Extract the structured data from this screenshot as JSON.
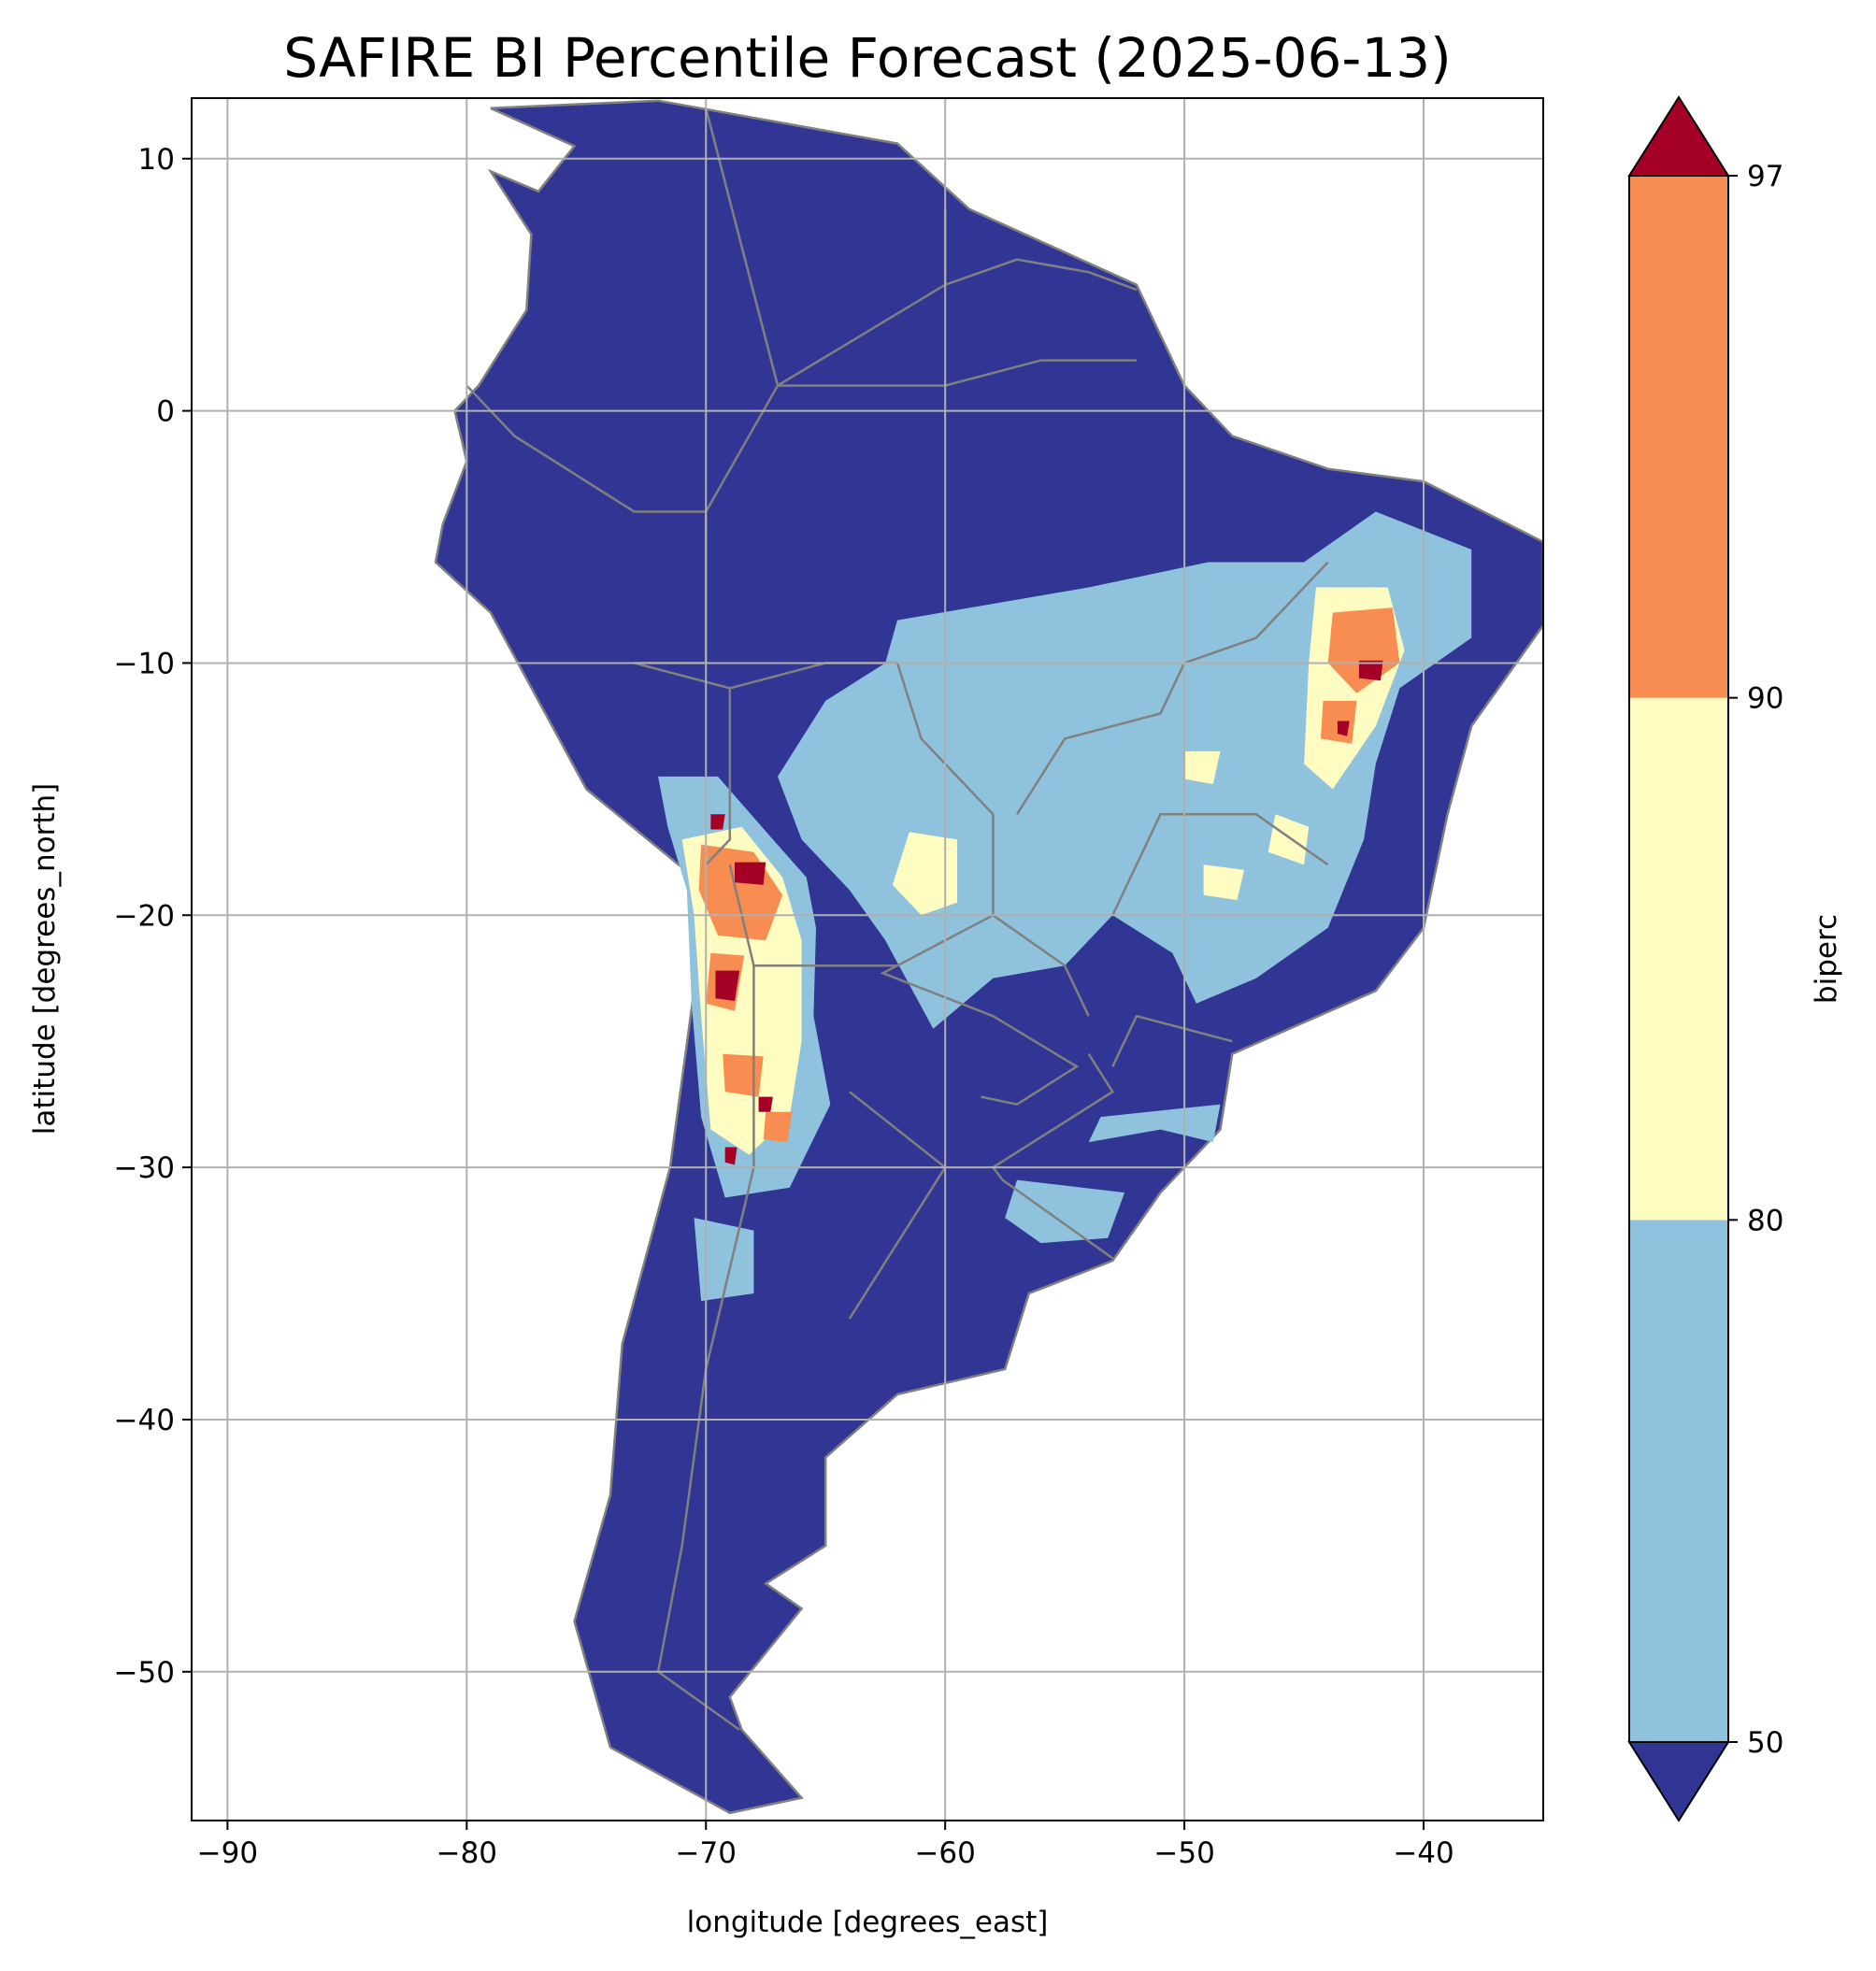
{
  "chart_data": {
    "type": "heatmap",
    "title": "SAFIRE BI Percentile Forecast (2025-06-13)",
    "xlabel": "longitude [degrees_east]",
    "ylabel": "latitude [degrees_north]",
    "xlim": [
      -91.5,
      -35
    ],
    "ylim": [
      -55.9,
      12.4
    ],
    "x_ticks": [
      -90,
      -80,
      -70,
      -60,
      -50,
      -40
    ],
    "x_tick_labels": [
      "−90",
      "−80",
      "−70",
      "−60",
      "−50",
      "−40"
    ],
    "y_ticks": [
      10,
      0,
      -10,
      -20,
      -30,
      -40,
      -50
    ],
    "y_tick_labels": [
      "10",
      "0",
      "−10",
      "−20",
      "−30",
      "−40",
      "−50"
    ],
    "grid": true,
    "colorbar": {
      "label": "biperc",
      "ticks": [
        50,
        80,
        90,
        97
      ],
      "tick_labels": [
        "50",
        "80",
        "90",
        "97"
      ],
      "bins": [
        {
          "range": "<50",
          "color": "#313695"
        },
        {
          "range": "50-80",
          "color": "#8fc3dd"
        },
        {
          "range": "80-90",
          "color": "#fffcc2"
        },
        {
          "range": "90-97",
          "color": "#f88d52"
        },
        {
          "range": ">97",
          "color": "#a50026"
        }
      ],
      "extend": "both"
    },
    "regions": {
      "continent": [
        [
          -79,
          12
        ],
        [
          -72,
          12.3
        ],
        [
          -62,
          10.6
        ],
        [
          -59,
          8
        ],
        [
          -52,
          5
        ],
        [
          -50,
          1
        ],
        [
          -48,
          -1
        ],
        [
          -44,
          -2.3
        ],
        [
          -40,
          -2.8
        ],
        [
          -35,
          -5.2
        ],
        [
          -35,
          -8.5
        ],
        [
          -38,
          -12.5
        ],
        [
          -39,
          -16
        ],
        [
          -40,
          -20.5
        ],
        [
          -42,
          -23
        ],
        [
          -48,
          -25.5
        ],
        [
          -48.5,
          -28.5
        ],
        [
          -51,
          -31
        ],
        [
          -53,
          -33.7
        ],
        [
          -56.5,
          -35
        ],
        [
          -57.5,
          -38
        ],
        [
          -62,
          -39
        ],
        [
          -65,
          -41.5
        ],
        [
          -65,
          -45
        ],
        [
          -67.5,
          -46.5
        ],
        [
          -66,
          -47.5
        ],
        [
          -69,
          -51
        ],
        [
          -68.5,
          -52.3
        ],
        [
          -66,
          -55
        ],
        [
          -69,
          -55.6
        ],
        [
          -74,
          -53
        ],
        [
          -75.5,
          -48
        ],
        [
          -74,
          -43
        ],
        [
          -73.5,
          -37
        ],
        [
          -71.5,
          -30
        ],
        [
          -70.5,
          -23
        ],
        [
          -70.5,
          -18.5
        ],
        [
          -75,
          -15
        ],
        [
          -79,
          -8
        ],
        [
          -81.3,
          -6
        ],
        [
          -81,
          -4.5
        ],
        [
          -80,
          -2
        ],
        [
          -80.5,
          0
        ],
        [
          -79.5,
          1
        ],
        [
          -78.5,
          2.5
        ],
        [
          -77.5,
          4
        ],
        [
          -77.3,
          7
        ],
        [
          -79,
          9.5
        ],
        [
          -77,
          8.7
        ],
        [
          -75.5,
          10.5
        ]
      ],
      "light_blue": [
        [
          [
            -62,
            -8.3
          ],
          [
            -54,
            -7
          ],
          [
            -49,
            -6
          ],
          [
            -45,
            -6
          ],
          [
            -42,
            -4
          ],
          [
            -38,
            -5.5
          ],
          [
            -38,
            -9
          ],
          [
            -41,
            -11
          ],
          [
            -42,
            -14
          ],
          [
            -42.5,
            -17
          ],
          [
            -44,
            -20.5
          ],
          [
            -47,
            -22.5
          ],
          [
            -49.5,
            -23.5
          ],
          [
            -50.5,
            -21.5
          ],
          [
            -53,
            -20
          ],
          [
            -55,
            -22
          ],
          [
            -58,
            -22.5
          ],
          [
            -60.5,
            -24.5
          ],
          [
            -62.5,
            -21
          ],
          [
            -64,
            -19
          ],
          [
            -66,
            -17
          ],
          [
            -67,
            -14.5
          ],
          [
            -65,
            -11.5
          ],
          [
            -62.5,
            -10
          ]
        ],
        [
          [
            -53.5,
            -28
          ],
          [
            -48.5,
            -27.5
          ],
          [
            -48.8,
            -29
          ],
          [
            -51,
            -28.5
          ],
          [
            -54,
            -29
          ]
        ],
        [
          [
            -57,
            -30.5
          ],
          [
            -52.5,
            -31
          ],
          [
            -53.2,
            -32.8
          ],
          [
            -56,
            -33
          ],
          [
            -57.5,
            -32
          ]
        ],
        [
          [
            -72,
            -14.5
          ],
          [
            -69.5,
            -14.5
          ],
          [
            -67.2,
            -17
          ],
          [
            -65.8,
            -18.5
          ],
          [
            -65.4,
            -20.5
          ],
          [
            -65.5,
            -24
          ],
          [
            -64.8,
            -27.5
          ],
          [
            -66.5,
            -30.8
          ],
          [
            -69.2,
            -31.2
          ],
          [
            -70.2,
            -28
          ],
          [
            -70.6,
            -23.5
          ],
          [
            -70.8,
            -19
          ],
          [
            -71.6,
            -16.5
          ]
        ],
        [
          [
            -70.5,
            -32
          ],
          [
            -68,
            -32.5
          ],
          [
            -68,
            -35
          ],
          [
            -70.2,
            -35.3
          ]
        ]
      ],
      "yellow": [
        [
          [
            -71,
            -17
          ],
          [
            -68.5,
            -16.5
          ],
          [
            -66.8,
            -18.5
          ],
          [
            -66,
            -21
          ],
          [
            -66,
            -25
          ],
          [
            -66.5,
            -28
          ],
          [
            -68.2,
            -29.5
          ],
          [
            -69.8,
            -28.5
          ],
          [
            -70.2,
            -24
          ],
          [
            -70.5,
            -20
          ]
        ],
        [
          [
            -61.5,
            -16.7
          ],
          [
            -59.5,
            -17
          ],
          [
            -59.5,
            -19.5
          ],
          [
            -61,
            -20
          ],
          [
            -62.2,
            -18.8
          ]
        ],
        [
          [
            -44.5,
            -7
          ],
          [
            -41.5,
            -7
          ],
          [
            -40.8,
            -9.5
          ],
          [
            -42,
            -12.5
          ],
          [
            -43.8,
            -15
          ],
          [
            -45,
            -14
          ],
          [
            -44.8,
            -10
          ]
        ],
        [
          [
            -46.2,
            -16
          ],
          [
            -44.8,
            -16.5
          ],
          [
            -45,
            -18
          ],
          [
            -46.5,
            -17.5
          ]
        ],
        [
          [
            -49.2,
            -18
          ],
          [
            -47.5,
            -18.2
          ],
          [
            -47.8,
            -19.4
          ],
          [
            -49.2,
            -19.2
          ]
        ],
        [
          [
            -50,
            -13.5
          ],
          [
            -48.5,
            -13.5
          ],
          [
            -48.8,
            -14.8
          ],
          [
            -50,
            -14.6
          ]
        ]
      ],
      "orange": [
        [
          [
            -70.2,
            -17.2
          ],
          [
            -68,
            -17.5
          ],
          [
            -66.8,
            -19.2
          ],
          [
            -67.5,
            -21
          ],
          [
            -69.5,
            -20.8
          ],
          [
            -70.3,
            -19
          ]
        ],
        [
          [
            -69.8,
            -21.5
          ],
          [
            -68.4,
            -21.6
          ],
          [
            -68.8,
            -23.8
          ],
          [
            -70,
            -23.5
          ]
        ],
        [
          [
            -69.3,
            -25.5
          ],
          [
            -67.6,
            -25.6
          ],
          [
            -67.8,
            -27.2
          ],
          [
            -69.2,
            -27
          ]
        ],
        [
          [
            -43.8,
            -8
          ],
          [
            -41.3,
            -7.8
          ],
          [
            -41,
            -10
          ],
          [
            -42.8,
            -11.2
          ],
          [
            -44,
            -10
          ]
        ],
        [
          [
            -44.2,
            -11.5
          ],
          [
            -42.8,
            -11.5
          ],
          [
            -43,
            -13.2
          ],
          [
            -44.3,
            -13
          ]
        ],
        [
          [
            -67.5,
            -27.8
          ],
          [
            -66.4,
            -27.8
          ],
          [
            -66.6,
            -29
          ],
          [
            -67.6,
            -28.9
          ]
        ]
      ],
      "dark_red": [
        [
          [
            -68.8,
            -17.9
          ],
          [
            -67.5,
            -17.9
          ],
          [
            -67.6,
            -18.8
          ],
          [
            -68.8,
            -18.7
          ]
        ],
        [
          [
            -69.6,
            -22.2
          ],
          [
            -68.6,
            -22.2
          ],
          [
            -68.8,
            -23.4
          ],
          [
            -69.6,
            -23.3
          ]
        ],
        [
          [
            -42.7,
            -9.9
          ],
          [
            -41.7,
            -9.9
          ],
          [
            -41.8,
            -10.7
          ],
          [
            -42.7,
            -10.6
          ]
        ],
        [
          [
            -69.8,
            -16
          ],
          [
            -69.2,
            -16
          ],
          [
            -69.3,
            -16.6
          ],
          [
            -69.8,
            -16.6
          ]
        ],
        [
          [
            -67.8,
            -27.2
          ],
          [
            -67.2,
            -27.2
          ],
          [
            -67.3,
            -27.8
          ],
          [
            -67.8,
            -27.8
          ]
        ],
        [
          [
            -69.2,
            -29.2
          ],
          [
            -68.7,
            -29.2
          ],
          [
            -68.8,
            -29.9
          ],
          [
            -69.2,
            -29.8
          ]
        ],
        [
          [
            -43.6,
            -12.3
          ],
          [
            -43.1,
            -12.3
          ],
          [
            -43.2,
            -12.9
          ],
          [
            -43.6,
            -12.8
          ]
        ]
      ],
      "borders": [
        [
          [
            -70,
            12
          ],
          [
            -67,
            1
          ],
          [
            -70,
            -4
          ],
          [
            -73,
            -4
          ],
          [
            -78,
            -1
          ],
          [
            -80,
            1
          ]
        ],
        [
          [
            -70,
            -4
          ],
          [
            -70,
            -10
          ],
          [
            -73,
            -10
          ],
          [
            -69,
            -11
          ],
          [
            -69,
            -17
          ],
          [
            -70,
            -18
          ]
        ],
        [
          [
            -69,
            -11
          ],
          [
            -65,
            -10
          ],
          [
            -62,
            -10
          ],
          [
            -61,
            -13
          ],
          [
            -58,
            -16
          ],
          [
            -58,
            -20
          ],
          [
            -62,
            -22
          ],
          [
            -68,
            -22
          ],
          [
            -69,
            -18
          ]
        ],
        [
          [
            -62,
            -22
          ],
          [
            -62.6,
            -22.3
          ],
          [
            -58,
            -24
          ],
          [
            -54.5,
            -26
          ],
          [
            -57,
            -27.5
          ],
          [
            -58.5,
            -27.2
          ]
        ],
        [
          [
            -54,
            -25.5
          ],
          [
            -53,
            -27
          ],
          [
            -58,
            -30
          ],
          [
            -57.6,
            -30.5
          ],
          [
            -53,
            -33.6
          ]
        ],
        [
          [
            -58,
            -20
          ],
          [
            -55,
            -22
          ],
          [
            -54,
            -24
          ]
        ],
        [
          [
            -67,
            1
          ],
          [
            -60,
            5
          ],
          [
            -60,
            8
          ]
        ],
        [
          [
            -60,
            5
          ],
          [
            -57,
            6
          ],
          [
            -54,
            5.5
          ],
          [
            -52,
            4.8
          ]
        ],
        [
          [
            -67,
            1
          ],
          [
            -60,
            1
          ],
          [
            -56,
            2
          ],
          [
            -52,
            2
          ]
        ],
        [
          [
            -68,
            -22
          ],
          [
            -68,
            -30
          ],
          [
            -70,
            -38
          ],
          [
            -71,
            -45
          ],
          [
            -72,
            -50
          ],
          [
            -68.6,
            -52.3
          ]
        ],
        [
          [
            -57,
            -16
          ],
          [
            -55,
            -13
          ],
          [
            -51,
            -12
          ],
          [
            -50,
            -10
          ],
          [
            -47,
            -9
          ],
          [
            -44,
            -6
          ]
        ],
        [
          [
            -53,
            -20
          ],
          [
            -51,
            -16
          ],
          [
            -47,
            -16
          ],
          [
            -44,
            -18
          ]
        ],
        [
          [
            -48,
            -25
          ],
          [
            -52,
            -24
          ],
          [
            -53,
            -26
          ]
        ],
        [
          [
            -64,
            -36
          ],
          [
            -62,
            -33
          ],
          [
            -60,
            -30
          ],
          [
            -64,
            -27
          ]
        ]
      ]
    }
  }
}
